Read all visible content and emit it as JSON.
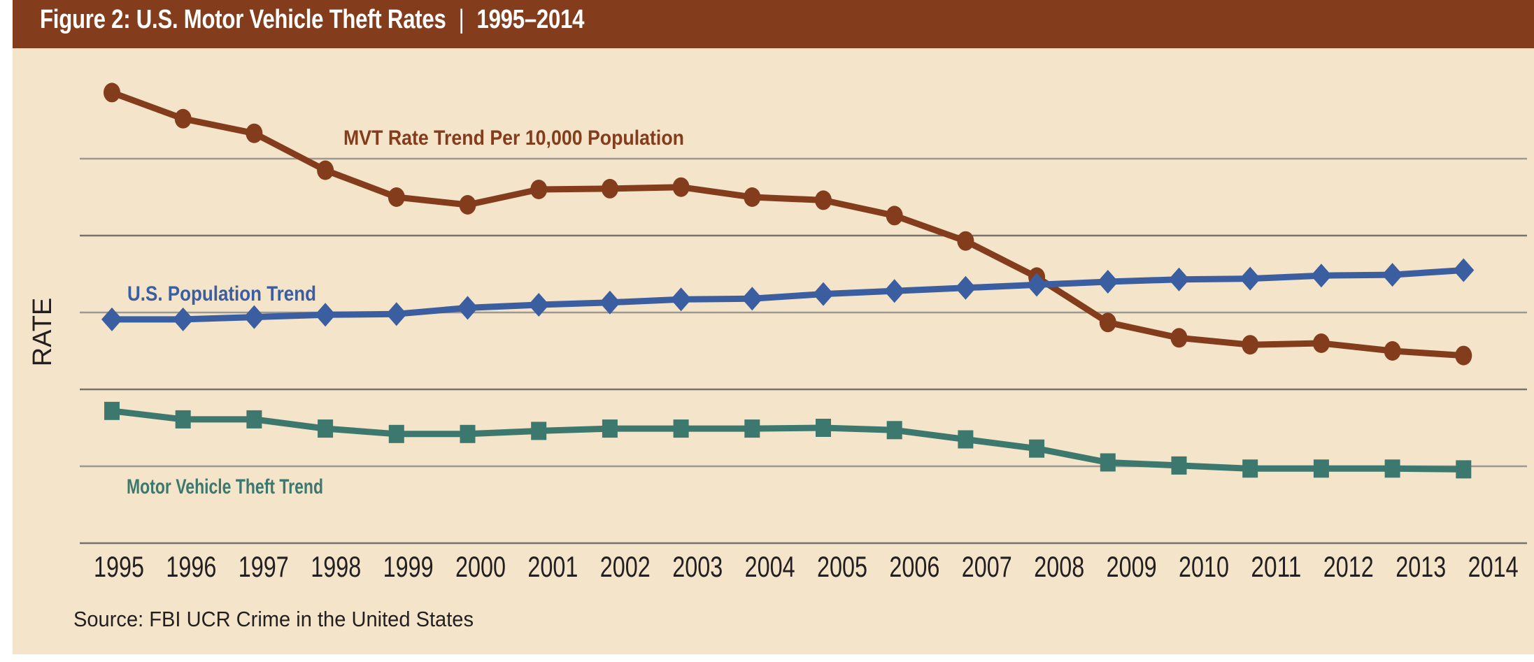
{
  "header": {
    "title": "Figure 2: U.S. Motor Vehicle Theft Rates",
    "separator": "|",
    "range": "1995–2014"
  },
  "colors": {
    "header_bg": "#843d1c",
    "panel_bg": "#f4e4c9",
    "mvt_rate": "#843d1c",
    "population": "#3b5ea1",
    "theft": "#3c786d",
    "text": "#231f20"
  },
  "chart_data": {
    "type": "line",
    "title": "Figure 2: U.S. Motor Vehicle Theft Rates | 1995–2014",
    "xlabel": "",
    "ylabel": "RATE",
    "x": [
      "1995",
      "1996",
      "1997",
      "1998",
      "1999",
      "2000",
      "2001",
      "2002",
      "2003",
      "2004",
      "2005",
      "2006",
      "2007",
      "2008",
      "2009",
      "2010",
      "2011",
      "2012",
      "2013",
      "2014"
    ],
    "y_units": "relative (gridline intervals; no tick labels shown)",
    "ylim": [
      0,
      5
    ],
    "gridlines": [
      0,
      1,
      2,
      3,
      4,
      5
    ],
    "grid": true,
    "legend": "inline labels",
    "series": [
      {
        "name": "MVT Rate Trend Per 10,000 Population",
        "marker": "circle",
        "values": [
          5.86,
          5.52,
          5.33,
          4.85,
          4.5,
          4.4,
          4.6,
          4.61,
          4.63,
          4.5,
          4.46,
          4.26,
          3.93,
          3.46,
          2.87,
          2.67,
          2.58,
          2.6,
          2.5,
          2.44
        ]
      },
      {
        "name": "U.S. Population Trend",
        "marker": "diamond",
        "values": [
          2.91,
          2.91,
          2.94,
          2.97,
          2.98,
          3.06,
          3.1,
          3.13,
          3.17,
          3.18,
          3.24,
          3.28,
          3.32,
          3.36,
          3.4,
          3.43,
          3.44,
          3.48,
          3.49,
          3.55
        ]
      },
      {
        "name": "Motor Vehicle Theft Trend",
        "marker": "square",
        "values": [
          1.72,
          1.61,
          1.61,
          1.49,
          1.42,
          1.42,
          1.46,
          1.49,
          1.49,
          1.49,
          1.5,
          1.47,
          1.35,
          1.23,
          1.05,
          1.01,
          0.97,
          0.97,
          0.97,
          0.96
        ]
      }
    ],
    "annotations": [
      "Source: FBI UCR Crime in the United States"
    ]
  },
  "source": "Source: FBI UCR Crime in the United States"
}
